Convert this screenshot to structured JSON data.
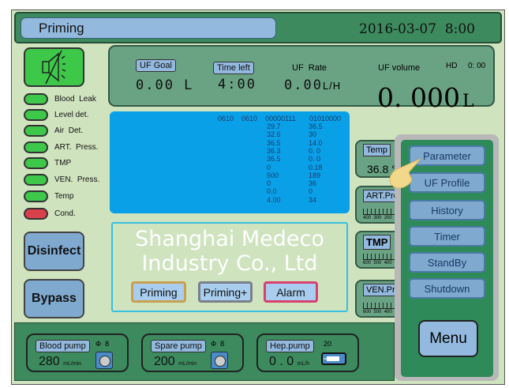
{
  "header": {
    "title": "Priming",
    "datetime": "2016-03-07  8:00"
  },
  "indicators": [
    {
      "label": "Blood  Leak",
      "color": "#3dc84a"
    },
    {
      "label": "Level det.",
      "color": "#3dc84a"
    },
    {
      "label": "Air  Det.",
      "color": "#3dc84a"
    },
    {
      "label": "ART.  Press.",
      "color": "#3dc84a"
    },
    {
      "label": "TMP",
      "color": "#3dc84a"
    },
    {
      "label": "VEN.  Press.",
      "color": "#3dc84a"
    },
    {
      "label": "Temp",
      "color": "#3dc84a"
    },
    {
      "label": "Cond.",
      "color": "#d8404a"
    }
  ],
  "left_buttons": {
    "disinfect": "Disinfect",
    "bypass": "Bypass"
  },
  "status": {
    "uf_goal_label": "UF Goal",
    "uf_goal": "0.00 L",
    "time_left_label": "Time left",
    "time_left": "4:00",
    "uf_rate_label": "UF  Rate",
    "uf_rate": "0.00",
    "uf_rate_unit": "L/H",
    "uf_volume_label": "UF volume",
    "mode": "HD",
    "mode_time": "0: 00",
    "uf_volume": "0. 000",
    "uf_volume_unit": "L"
  },
  "debug": {
    "head": [
      "0610",
      "0610",
      "00000111",
      "01010000"
    ],
    "col1": [
      "29.7",
      "32.6",
      "36.5",
      "36.3",
      "36.5",
      "0",
      "500",
      "0",
      "0.0",
      "4.00"
    ],
    "col2": [
      "36.5",
      "30",
      "14.0",
      "0. 0",
      "0. 0",
      "0.18",
      "189",
      "36",
      "0",
      "34"
    ]
  },
  "actions": [
    "Priming",
    "Priming+",
    "Alarm"
  ],
  "gauges": [
    {
      "label": "Temp",
      "value": "36.8 °"
    },
    {
      "label": "ART.Press",
      "scale": "400  300  200"
    },
    {
      "label": "TMP",
      "scale": "600  500  400"
    },
    {
      "label": "VEN.Press",
      "scale": "600  500  400"
    }
  ],
  "menu": {
    "items": [
      "Parameter",
      "UF Profile",
      "History",
      "Timer",
      "StandBy",
      "Shutdown"
    ],
    "button": "Menu"
  },
  "pumps": [
    {
      "label": "Blood pump",
      "value": "280",
      "unit": "mL/min",
      "size": "Φ  8"
    },
    {
      "label": "Spare pump",
      "value": "200",
      "unit": "mL/min",
      "size": "Φ  8"
    },
    {
      "label": "Hep.pump",
      "value": "0 . 0",
      "unit": "mL/h",
      "size": "20"
    }
  ],
  "watermark": "Shanghai Medeco Industry Co., Ltd"
}
